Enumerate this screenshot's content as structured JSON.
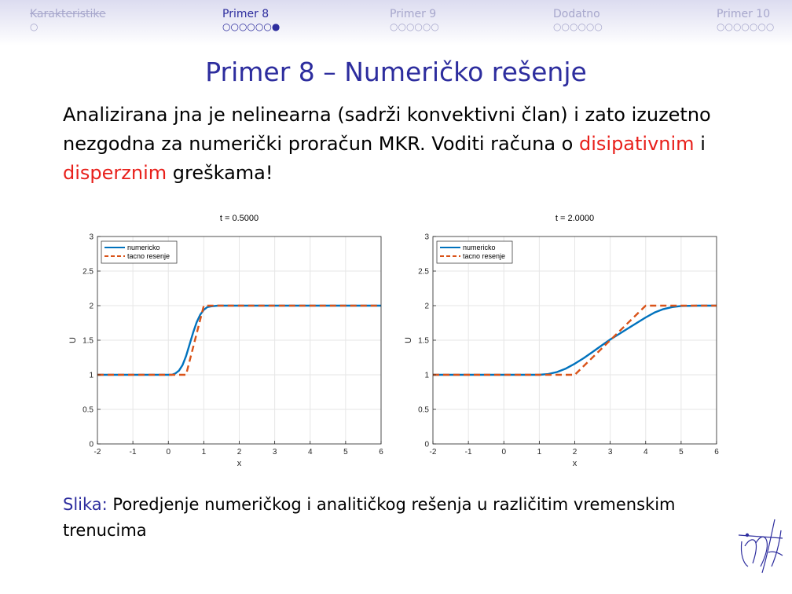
{
  "nav": [
    {
      "label": "Karakteristike",
      "dots": "○"
    },
    {
      "label": "Primer 8",
      "dots": "○○○○○○●"
    },
    {
      "label": "Primer 9",
      "dots": "○○○○○○"
    },
    {
      "label": "Dodatno",
      "dots": "○○○○○○"
    },
    {
      "label": "Primer 10",
      "dots": "○○○○○○○"
    }
  ],
  "title": "Primer 8 – Numeričko rešenje",
  "paragraph": {
    "p1": "Analizirana jna je nelinearna (sadrži konvektivni član) i zato izuzetno nezgodna za numerički proračun MKR. Voditi računa o ",
    "w1": "disipativnim",
    "p2": " i ",
    "w2": "disperznim",
    "p3": " greškama!"
  },
  "caption": {
    "label": "Slika:",
    "text": " Poredjenje numeričkog i analitičkog rešenja u različitim vremenskim trenucima"
  },
  "chart_data": [
    {
      "type": "line",
      "title": "t = 0.5000",
      "xlabel": "x",
      "ylabel": "U",
      "xlim": [
        -2,
        6
      ],
      "ylim": [
        0,
        3
      ],
      "xticks": [
        -2,
        -1,
        0,
        1,
        2,
        3,
        4,
        5,
        6
      ],
      "yticks": [
        0,
        0.5,
        1,
        1.5,
        2,
        2.5,
        3
      ],
      "grid": true,
      "legend": "top-left",
      "series": [
        {
          "name": "numericko",
          "color": "#0072bd",
          "style": "solid",
          "x": [
            -2,
            0,
            0.1,
            0.2,
            0.3,
            0.4,
            0.5,
            0.6,
            0.7,
            0.8,
            0.9,
            1.0,
            1.1,
            1.2,
            1.3,
            1.4,
            1.5,
            1.7,
            2,
            6
          ],
          "y": [
            1,
            1,
            1.0,
            1.02,
            1.06,
            1.14,
            1.27,
            1.44,
            1.61,
            1.76,
            1.87,
            1.94,
            1.98,
            1.99,
            1.995,
            2.0,
            2.0,
            2.0,
            2.0,
            2.0
          ]
        },
        {
          "name": "tacno resenje",
          "color": "#d95319",
          "style": "dashed",
          "x": [
            -2,
            0.5,
            1,
            6
          ],
          "y": [
            1,
            1,
            2,
            2
          ]
        }
      ]
    },
    {
      "type": "line",
      "title": "t = 2.0000",
      "xlabel": "x",
      "ylabel": "U",
      "xlim": [
        -2,
        6
      ],
      "ylim": [
        0,
        3
      ],
      "xticks": [
        -2,
        -1,
        0,
        1,
        2,
        3,
        4,
        5,
        6
      ],
      "yticks": [
        0,
        0.5,
        1,
        1.5,
        2,
        2.5,
        3
      ],
      "grid": true,
      "legend": "top-left",
      "series": [
        {
          "name": "numericko",
          "color": "#0072bd",
          "style": "solid",
          "x": [
            -2,
            1,
            1.25,
            1.5,
            1.75,
            2,
            2.25,
            2.5,
            2.75,
            3,
            3.25,
            3.5,
            3.75,
            4,
            4.25,
            4.5,
            4.75,
            5,
            5.5,
            6
          ],
          "y": [
            1,
            1,
            1.01,
            1.04,
            1.09,
            1.16,
            1.24,
            1.33,
            1.42,
            1.51,
            1.59,
            1.67,
            1.75,
            1.83,
            1.9,
            1.95,
            1.98,
            1.995,
            2.0,
            2.0
          ]
        },
        {
          "name": "tacno resenje",
          "color": "#d95319",
          "style": "dashed",
          "x": [
            -2,
            2,
            4,
            6
          ],
          "y": [
            1,
            1,
            2,
            2
          ]
        }
      ]
    }
  ]
}
